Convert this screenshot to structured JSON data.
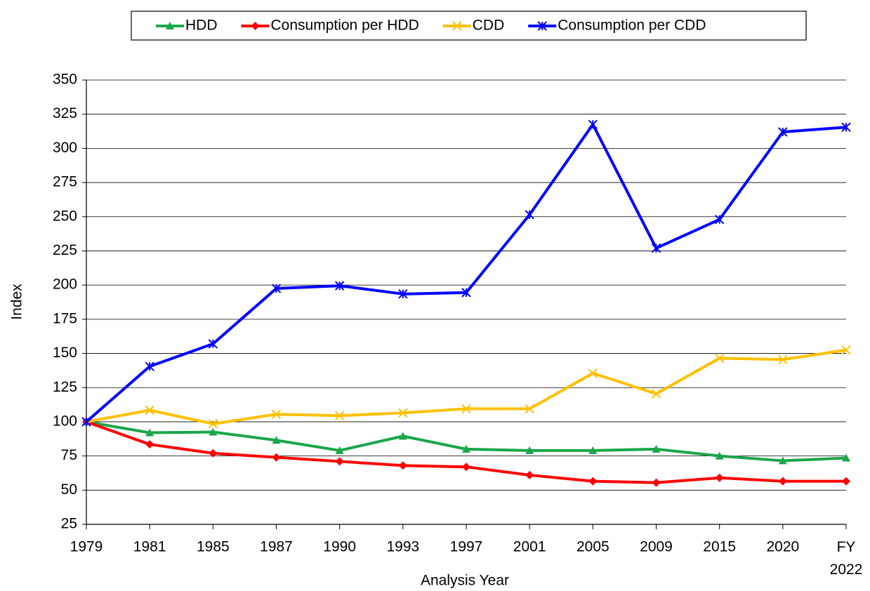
{
  "chart_data": {
    "type": "line",
    "x_label": "Analysis Year",
    "y_label": "Index",
    "categories": [
      "1979",
      "1981",
      "1985",
      "1987",
      "1990",
      "1993",
      "1997",
      "2001",
      "2005",
      "2009",
      "2015",
      "2020",
      "FY 2022"
    ],
    "series": [
      {
        "name": "HDD",
        "color": "#1aa64a",
        "marker": "triangle",
        "values": [
          100,
          92,
          92.5,
          86.5,
          79,
          89.5,
          80,
          79,
          79,
          80,
          75,
          71.5,
          73.5
        ]
      },
      {
        "name": "Consumption per HDD",
        "color": "#ff0000",
        "marker": "diamond",
        "values": [
          100,
          83.5,
          77,
          74,
          71,
          68,
          67,
          61,
          56.5,
          55.5,
          59,
          56.5,
          56.5
        ]
      },
      {
        "name": "CDD",
        "color": "#ffc000",
        "marker": "x",
        "values": [
          100,
          108.5,
          98.5,
          105.5,
          104.5,
          106.5,
          109.5,
          109.5,
          135.5,
          120.5,
          146.5,
          145.5,
          152.5
        ]
      },
      {
        "name": "Consumption per CDD",
        "color": "#0000ff",
        "marker": "star",
        "values": [
          100,
          140.5,
          157,
          197.5,
          199.5,
          193.5,
          194.5,
          251.5,
          317.5,
          227,
          248,
          312,
          315.5
        ]
      }
    ],
    "ylim": [
      25,
      350
    ],
    "yticks": [
      25,
      50,
      75,
      100,
      125,
      150,
      175,
      200,
      225,
      250,
      275,
      300,
      325,
      350
    ],
    "grid": true,
    "legend": "top"
  }
}
